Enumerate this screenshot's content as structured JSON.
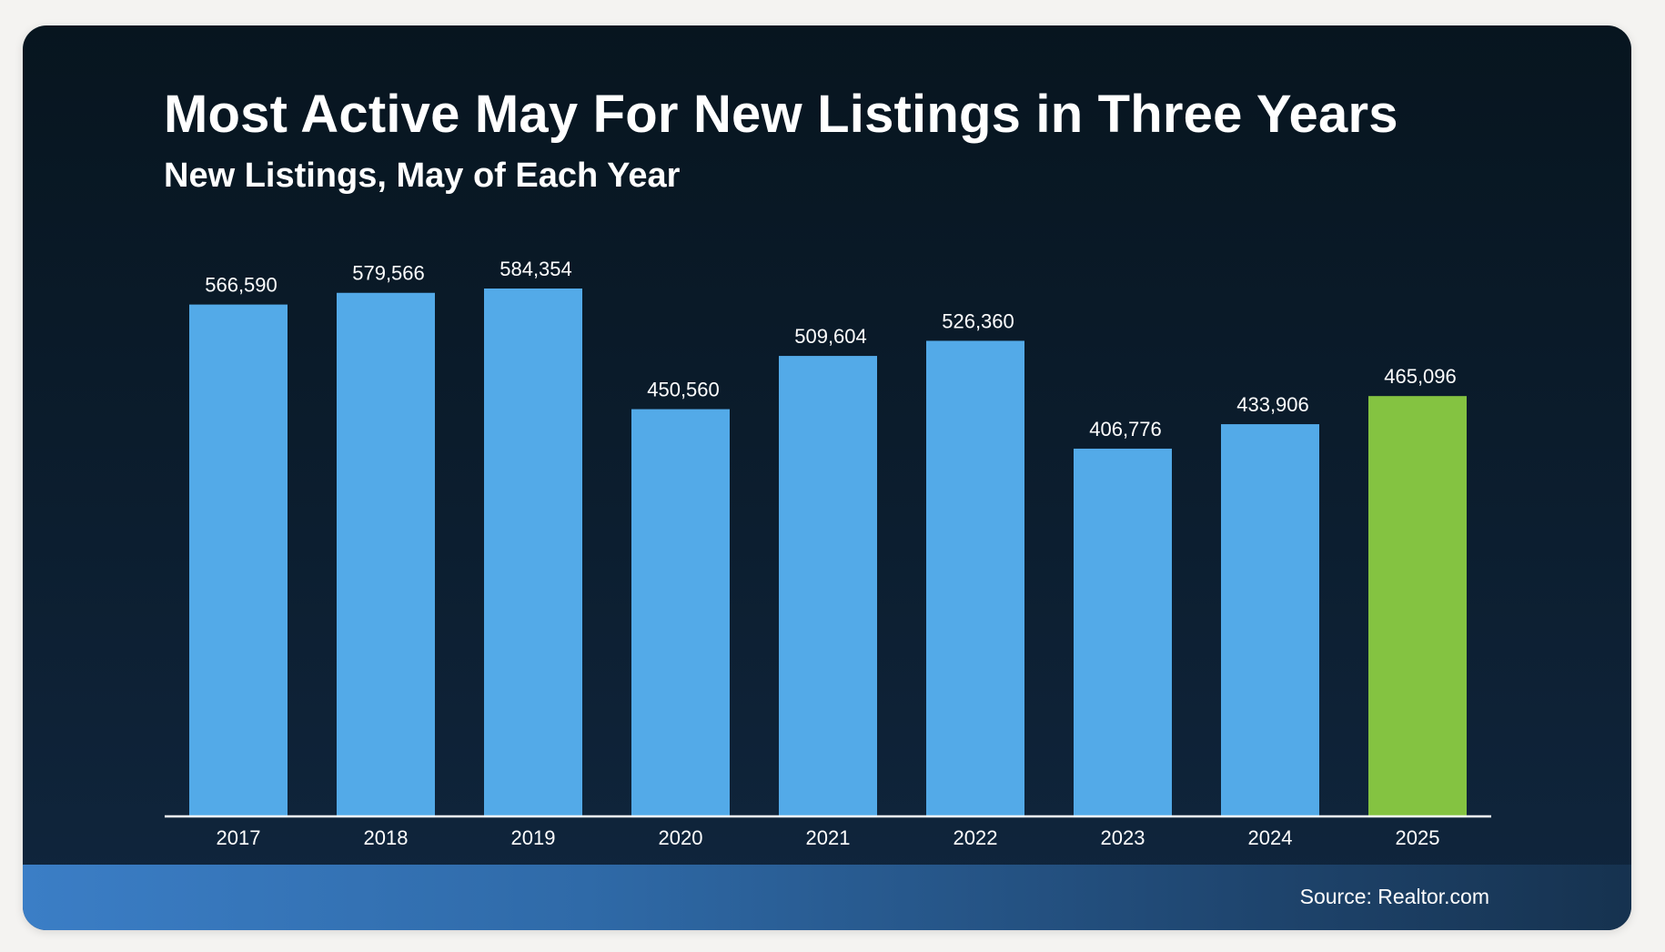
{
  "header": {
    "title": "Most Active May For New Listings in Three Years",
    "subtitle": "New Listings, May of Each Year"
  },
  "footer": {
    "source": "Source: Realtor.com"
  },
  "colors": {
    "bar": "#53aae8",
    "highlight_bar": "#84c341",
    "label": "#ffffff",
    "axis": "#ffffff"
  },
  "chart_data": {
    "type": "bar",
    "title": "Most Active May For New Listings in Three Years",
    "subtitle": "New Listings, May of Each Year",
    "xlabel": "",
    "ylabel": "",
    "categories": [
      "2017",
      "2018",
      "2019",
      "2020",
      "2021",
      "2022",
      "2023",
      "2024",
      "2025"
    ],
    "values": [
      566590,
      579566,
      584354,
      450560,
      509604,
      526360,
      406776,
      433906,
      465096
    ],
    "value_labels": [
      "566,590",
      "579,566",
      "584,354",
      "450,560",
      "509,604",
      "526,360",
      "406,776",
      "433,906",
      "465,096"
    ],
    "highlight_category": "2025",
    "ylim": [
      0,
      584354
    ],
    "grid": false,
    "legend": "none"
  }
}
